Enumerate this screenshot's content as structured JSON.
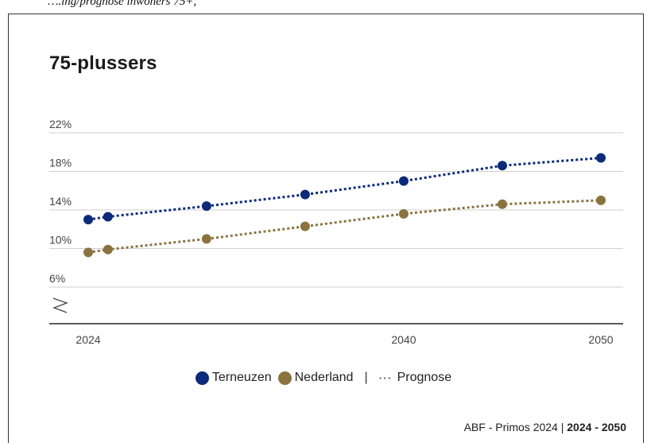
{
  "caption": "….ing/prognose inwoners 75+,",
  "title": "75-plussers",
  "legend": {
    "series1": "Terneuzen",
    "series2": "Nederland",
    "separator": "|",
    "dots": "···",
    "prognose": "Prognose"
  },
  "source": {
    "text": "ABF - Primos 2024 | ",
    "range": "2024 - 2050"
  },
  "colors": {
    "terneuzen": "#0b2a7a",
    "nederland": "#8b7340",
    "grid": "#cfcfcf",
    "axis": "#222222"
  },
  "chart_data": {
    "type": "line",
    "title": "75-plussers",
    "xlabel": "",
    "ylabel": "",
    "ylim": [
      4,
      22
    ],
    "yticks": [
      22,
      18,
      14,
      10,
      6
    ],
    "ytick_labels": [
      "22%",
      "18%",
      "14%",
      "10%",
      "6%"
    ],
    "xticks": [
      2024,
      2040,
      2050
    ],
    "xtick_labels": [
      "2024",
      "2040",
      "2050"
    ],
    "axis_break": true,
    "line_style": "dotted",
    "grid": true,
    "legend_position": "bottom",
    "series": [
      {
        "name": "Terneuzen",
        "color": "#0b2a7a",
        "points": [
          [
            2024,
            13.0
          ],
          [
            2025,
            13.3
          ],
          [
            2030,
            14.4
          ],
          [
            2035,
            15.6
          ],
          [
            2040,
            17.0
          ],
          [
            2045,
            18.6
          ],
          [
            2050,
            19.4
          ]
        ]
      },
      {
        "name": "Nederland",
        "color": "#8b7340",
        "points": [
          [
            2024,
            9.6
          ],
          [
            2025,
            9.9
          ],
          [
            2030,
            11.0
          ],
          [
            2035,
            12.3
          ],
          [
            2040,
            13.6
          ],
          [
            2045,
            14.6
          ],
          [
            2050,
            15.0
          ]
        ]
      }
    ]
  }
}
